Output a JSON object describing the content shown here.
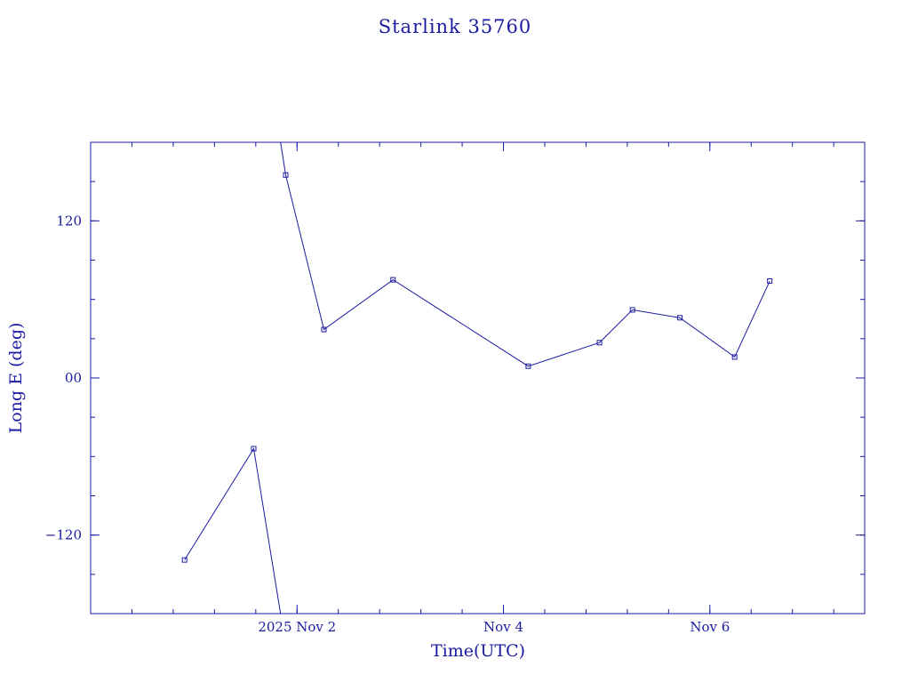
{
  "chart_data": {
    "type": "line",
    "title": "Starlink 35760",
    "xlabel": "Time(UTC)",
    "ylabel": "Long E (deg)",
    "xlim": [
      0.0,
      7.5
    ],
    "ylim": [
      -180,
      180
    ],
    "x_ticks": [
      {
        "x": 2.0,
        "label": "2025 Nov  2"
      },
      {
        "x": 4.0,
        "label": "Nov  4"
      },
      {
        "x": 6.0,
        "label": "Nov  6"
      }
    ],
    "x_minor_every": 0.4,
    "y_ticks": [
      {
        "y": 120,
        "label": "120"
      },
      {
        "y": 0,
        "label": "00"
      },
      {
        "y": -120,
        "label": "−120"
      }
    ],
    "y_minor_every": 30,
    "grid": false,
    "legend": "none",
    "color": "#1a1aa0",
    "segments": [
      {
        "points": [
          {
            "x": 0.91,
            "y": -139
          },
          {
            "x": 1.58,
            "y": -54
          },
          {
            "x": 1.84,
            "y": -180
          }
        ],
        "markers": [
          true,
          true,
          false
        ]
      },
      {
        "points": [
          {
            "x": 1.84,
            "y": 180
          },
          {
            "x": 1.89,
            "y": 155
          },
          {
            "x": 2.26,
            "y": 37
          },
          {
            "x": 2.93,
            "y": 75
          },
          {
            "x": 4.24,
            "y": 9
          },
          {
            "x": 4.93,
            "y": 27
          },
          {
            "x": 5.25,
            "y": 52
          },
          {
            "x": 5.71,
            "y": 46
          },
          {
            "x": 6.24,
            "y": 16
          },
          {
            "x": 6.58,
            "y": 74
          }
        ],
        "markers": [
          false,
          true,
          true,
          true,
          true,
          true,
          true,
          true,
          true,
          true
        ]
      }
    ]
  }
}
